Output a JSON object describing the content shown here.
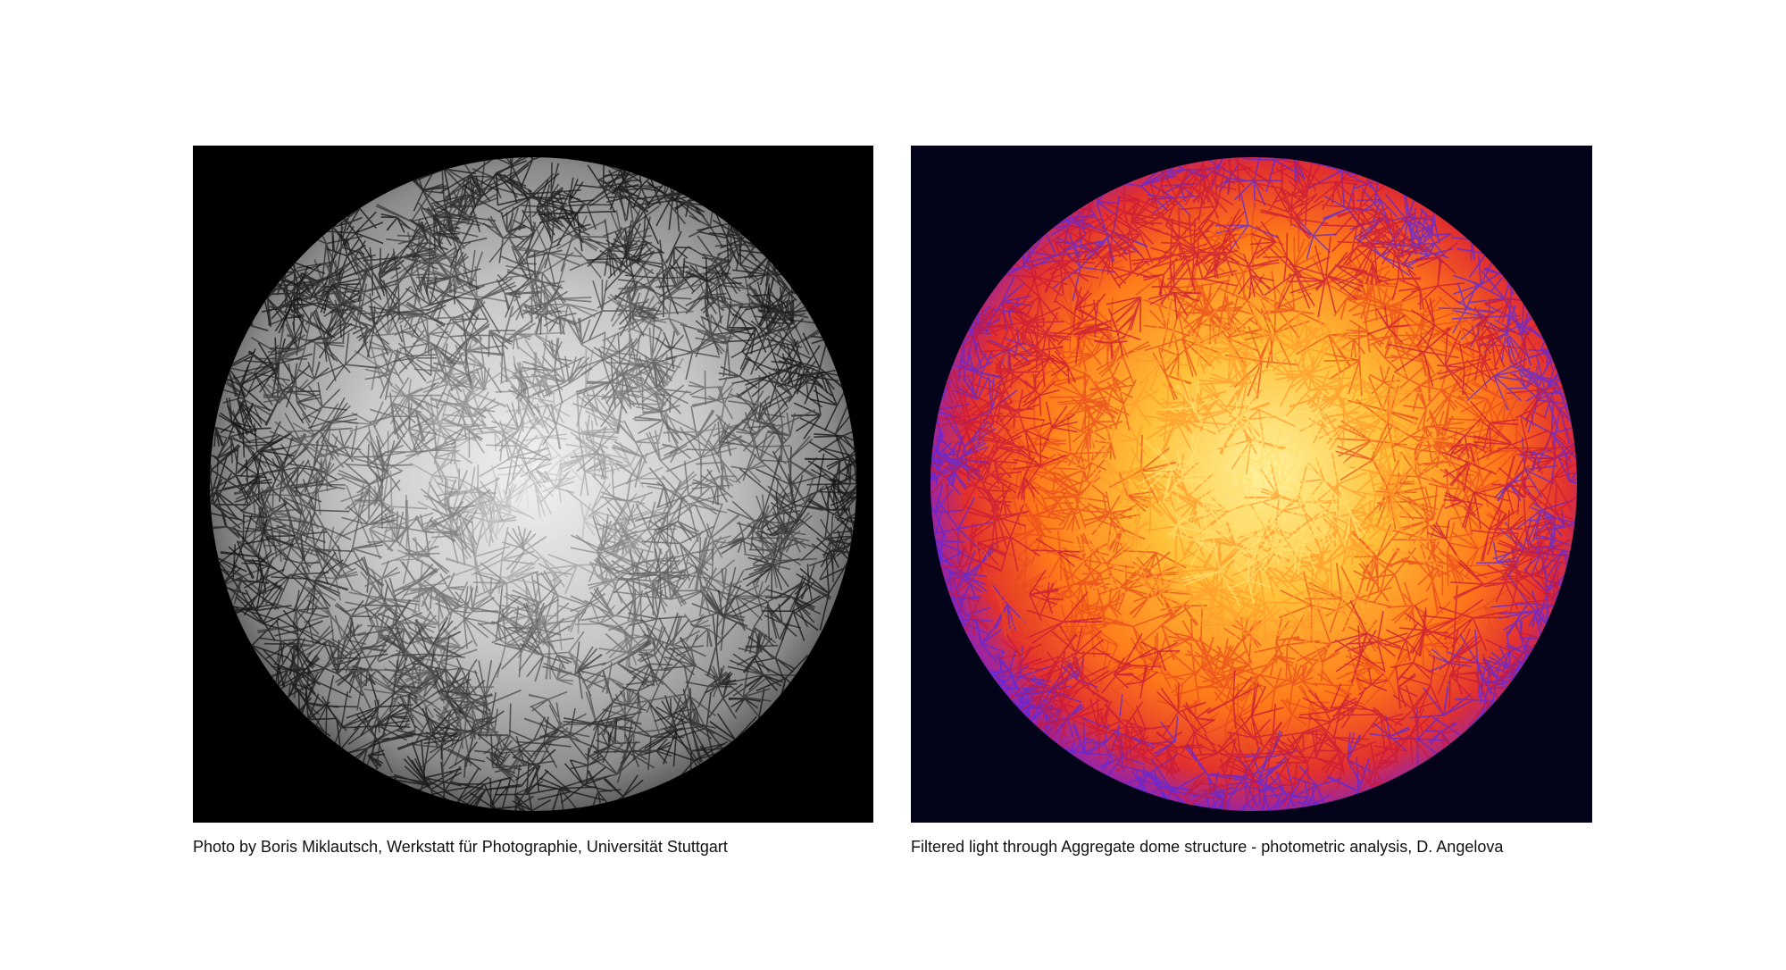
{
  "captions": [
    "Photo by Boris Miklautsch, Werkstatt für Photographie, Universität Stuttgart",
    "Filtered light through Aggregate dome structure - photometric analysis, D. Angelova"
  ]
}
